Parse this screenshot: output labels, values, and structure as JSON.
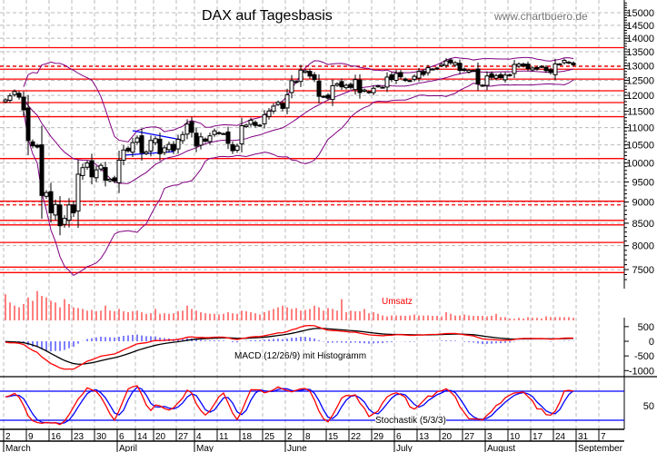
{
  "chart_data": {
    "type": "candlestick",
    "title": "DAX auf Tagesbasis",
    "watermark": "www.chartbuero.de",
    "price_axis": {
      "scale": "log",
      "ylim": [
        7200,
        15500
      ],
      "ticks": [
        7500,
        8000,
        8500,
        9000,
        9500,
        10000,
        10500,
        11000,
        11500,
        12000,
        12500,
        13000,
        13500,
        14000,
        14500,
        15000
      ],
      "grid": true
    },
    "candles": [
      [
        "03-02",
        11857
      ],
      [
        "03-03",
        11985
      ],
      [
        "03-04",
        12127
      ],
      [
        "03-05",
        11944
      ],
      [
        "03-06",
        11542
      ],
      [
        "03-09",
        10625
      ],
      [
        "03-10",
        10475
      ],
      [
        "03-11",
        10439
      ],
      [
        "03-12",
        9161
      ],
      [
        "03-13",
        9232
      ],
      [
        "03-16",
        8742
      ],
      [
        "03-17",
        8939
      ],
      [
        "03-18",
        8442
      ],
      [
        "03-19",
        8610
      ],
      [
        "03-20",
        8929
      ],
      [
        "03-23",
        8741
      ],
      [
        "03-24",
        9701
      ],
      [
        "03-25",
        9874
      ],
      [
        "03-26",
        10000
      ],
      [
        "03-27",
        9633
      ],
      [
        "03-30",
        9816
      ],
      [
        "03-31",
        9936
      ],
      [
        "04-01",
        9544
      ],
      [
        "04-02",
        9571
      ],
      [
        "04-03",
        9526
      ],
      [
        "04-06",
        10075
      ],
      [
        "04-07",
        10356
      ],
      [
        "04-08",
        10333
      ],
      [
        "04-09",
        10565
      ],
      [
        "04-14",
        10697
      ],
      [
        "04-15",
        10280
      ],
      [
        "04-16",
        10302
      ],
      [
        "04-17",
        10626
      ],
      [
        "04-20",
        10676
      ],
      [
        "04-21",
        10250
      ],
      [
        "04-22",
        10416
      ],
      [
        "04-23",
        10514
      ],
      [
        "04-24",
        10337
      ],
      [
        "04-27",
        10659
      ],
      [
        "04-28",
        10796
      ],
      [
        "04-29",
        11107
      ],
      [
        "04-30",
        10862
      ],
      [
        "05-04",
        10467
      ],
      [
        "05-05",
        10730
      ],
      [
        "05-06",
        10607
      ],
      [
        "05-07",
        10760
      ],
      [
        "05-08",
        10904
      ],
      [
        "05-11",
        10825
      ],
      [
        "05-12",
        10820
      ],
      [
        "05-13",
        10543
      ],
      [
        "05-14",
        10337
      ],
      [
        "05-15",
        10465
      ],
      [
        "05-18",
        11058
      ],
      [
        "05-19",
        11075
      ],
      [
        "05-20",
        11223
      ],
      [
        "05-21",
        11066
      ],
      [
        "05-22",
        11074
      ],
      [
        "05-25",
        11392
      ],
      [
        "05-26",
        11504
      ],
      [
        "05-27",
        11657
      ],
      [
        "05-28",
        11781
      ],
      [
        "05-29",
        11587
      ],
      [
        "06-02",
        12021
      ],
      [
        "06-03",
        12487
      ],
      [
        "06-04",
        12431
      ],
      [
        "06-05",
        12848
      ],
      [
        "06-08",
        12820
      ],
      [
        "06-09",
        12642
      ],
      [
        "06-10",
        12530
      ],
      [
        "06-11",
        11970
      ],
      [
        "06-12",
        11949
      ],
      [
        "06-15",
        11911
      ],
      [
        "06-16",
        12316
      ],
      [
        "06-17",
        12382
      ],
      [
        "06-18",
        12281
      ],
      [
        "06-19",
        12331
      ],
      [
        "06-22",
        12262
      ],
      [
        "06-23",
        12524
      ],
      [
        "06-24",
        12093
      ],
      [
        "06-25",
        12177
      ],
      [
        "06-26",
        12089
      ],
      [
        "06-29",
        12232
      ],
      [
        "06-30",
        12311
      ],
      [
        "07-01",
        12260
      ],
      [
        "07-02",
        12608
      ],
      [
        "07-03",
        12528
      ],
      [
        "07-06",
        12733
      ],
      [
        "07-07",
        12617
      ],
      [
        "07-08",
        12495
      ],
      [
        "07-09",
        12489
      ],
      [
        "07-10",
        12633
      ],
      [
        "07-13",
        12800
      ],
      [
        "07-14",
        12697
      ],
      [
        "07-15",
        12931
      ],
      [
        "07-16",
        12874
      ],
      [
        "07-17",
        12920
      ],
      [
        "07-20",
        13046
      ],
      [
        "07-21",
        13171
      ],
      [
        "07-22",
        13104
      ],
      [
        "07-23",
        13103
      ],
      [
        "07-24",
        12838
      ],
      [
        "07-27",
        12839
      ],
      [
        "07-28",
        12836
      ],
      [
        "07-29",
        12822
      ],
      [
        "07-30",
        12379
      ],
      [
        "07-31",
        12313
      ],
      [
        "08-03",
        12647
      ],
      [
        "08-04",
        12600
      ],
      [
        "08-05",
        12660
      ],
      [
        "08-06",
        12592
      ],
      [
        "08-07",
        12675
      ],
      [
        "08-10",
        12687
      ],
      [
        "08-11",
        13046
      ],
      [
        "08-12",
        13058
      ],
      [
        "08-13",
        12994
      ],
      [
        "08-14",
        12901
      ],
      [
        "08-17",
        12920
      ],
      [
        "08-18",
        12881
      ],
      [
        "08-19",
        12977
      ],
      [
        "08-20",
        12830
      ],
      [
        "08-21",
        12765
      ],
      [
        "08-24",
        13066
      ],
      [
        "08-25",
        13062
      ],
      [
        "08-26",
        13190
      ],
      [
        "08-27",
        13096
      ],
      [
        "08-28",
        13033
      ]
    ],
    "horizontal_lines": [
      {
        "price": 13650,
        "style": "solid"
      },
      {
        "price": 12980,
        "style": "dashed"
      },
      {
        "price": 12880,
        "style": "solid"
      },
      {
        "price": 12540,
        "style": "solid"
      },
      {
        "price": 12150,
        "style": "solid"
      },
      {
        "price": 11770,
        "style": "solid"
      },
      {
        "price": 11330,
        "style": "solid"
      },
      {
        "price": 10120,
        "style": "solid"
      },
      {
        "price": 9020,
        "style": "solid"
      },
      {
        "price": 8930,
        "style": "dashed"
      },
      {
        "price": 8565,
        "style": "solid"
      },
      {
        "price": 8460,
        "style": "solid"
      },
      {
        "price": 8070,
        "style": "solid"
      },
      {
        "price": 7550,
        "style": "solid"
      },
      {
        "price": 7440,
        "style": "solid"
      }
    ],
    "trendlines": [
      {
        "from": [
          "04-09",
          10910
        ],
        "to": [
          "04-28",
          10640
        ]
      },
      {
        "from": [
          "04-07",
          10212
        ],
        "to": [
          "04-24",
          10313
        ]
      }
    ],
    "bollinger": {
      "period": 20,
      "stddev": 2
    },
    "volume": {
      "label": "Umsatz",
      "values": [
        80,
        55,
        45,
        40,
        50,
        70,
        60,
        90,
        75,
        70,
        60,
        55,
        40,
        65,
        50,
        40,
        38,
        35,
        30,
        32,
        28,
        30,
        45,
        30,
        28,
        35,
        28,
        25,
        28,
        30,
        25,
        20,
        22,
        35,
        20,
        22,
        20,
        22,
        28,
        30,
        45,
        35,
        30,
        25,
        22,
        20,
        20,
        18,
        20,
        25,
        22,
        20,
        30,
        28,
        25,
        22,
        18,
        25,
        30,
        35,
        40,
        45,
        40,
        35,
        38,
        30,
        32,
        35,
        45,
        40,
        30,
        38,
        35,
        30,
        65,
        25,
        30,
        28,
        28,
        35,
        22,
        25,
        20,
        15,
        12,
        15,
        15,
        15,
        14,
        15,
        18,
        15,
        15,
        15,
        14,
        14,
        12,
        25,
        20,
        15,
        15,
        18,
        15,
        14,
        14,
        14,
        12,
        14,
        20,
        10,
        10,
        6,
        5,
        8,
        6,
        10,
        8,
        8,
        6,
        12,
        10,
        10,
        10,
        10,
        10,
        8
      ]
    },
    "macd": {
      "label": "MACD (12/26/9) mit Histogramm",
      "ticks": [
        500,
        0,
        -500,
        -1000
      ]
    },
    "stochastic": {
      "label": "Stochastik (5/3/3)",
      "ticks": [
        50
      ],
      "bands": [
        80,
        20
      ]
    },
    "x_ticks": [
      {
        "label": "2",
        "date": "03-02"
      },
      {
        "label": "9",
        "date": "03-09"
      },
      {
        "label": "16",
        "date": "03-16"
      },
      {
        "label": "23",
        "date": "03-23"
      },
      {
        "label": "30",
        "date": "03-30"
      },
      {
        "label": "6",
        "date": "04-06"
      },
      {
        "label": "14",
        "date": "04-14"
      },
      {
        "label": "20",
        "date": "04-20"
      },
      {
        "label": "27",
        "date": "04-27"
      },
      {
        "label": "4",
        "date": "05-04"
      },
      {
        "label": "11",
        "date": "05-11"
      },
      {
        "label": "18",
        "date": "05-18"
      },
      {
        "label": "25",
        "date": "05-25"
      },
      {
        "label": "2",
        "date": "06-02"
      },
      {
        "label": "8",
        "date": "06-08"
      },
      {
        "label": "15",
        "date": "06-15"
      },
      {
        "label": "22",
        "date": "06-22"
      },
      {
        "label": "29",
        "date": "06-29"
      },
      {
        "label": "6",
        "date": "07-06"
      },
      {
        "label": "13",
        "date": "07-13"
      },
      {
        "label": "20",
        "date": "07-20"
      },
      {
        "label": "27",
        "date": "07-27"
      },
      {
        "label": "3",
        "date": "08-03"
      },
      {
        "label": "10",
        "date": "08-10"
      },
      {
        "label": "17",
        "date": "08-17"
      },
      {
        "label": "24",
        "date": "08-24"
      },
      {
        "label": "31",
        "date": "08-31"
      },
      {
        "label": "7",
        "date": "09-07"
      }
    ],
    "x_months": [
      {
        "label": "March",
        "date": "03-02"
      },
      {
        "label": "April",
        "date": "04-06"
      },
      {
        "label": "May",
        "date": "05-04"
      },
      {
        "label": "June",
        "date": "06-02"
      },
      {
        "label": "July",
        "date": "07-06"
      },
      {
        "label": "August",
        "date": "08-03"
      },
      {
        "label": "September",
        "date": "08-31"
      }
    ],
    "colors": {
      "up": "#ffffff",
      "down": "#000000",
      "levels": "#ff0000",
      "bands": "#800080",
      "trend": "#0000ff",
      "volume": "#ff0000",
      "macd": "#ff0000",
      "signal": "#000000",
      "histogram": "#0000ff",
      "stoch_k": "#ff0000",
      "stoch_d": "#0000ff"
    }
  }
}
